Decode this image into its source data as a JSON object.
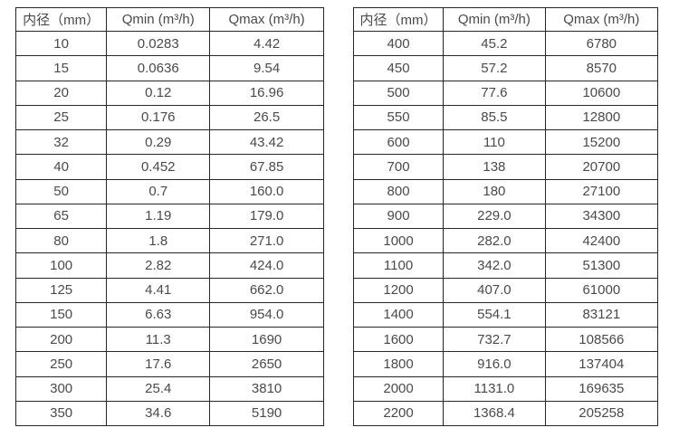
{
  "colors": {
    "border": "#262626",
    "text": "#4a4a4a",
    "background": "#ffffff"
  },
  "tables": [
    {
      "name": "flow-spec-table-small-diameters",
      "headers": [
        "内径（mm）",
        "Qmin (m³/h)",
        "Qmax (m³/h)"
      ],
      "rows": [
        [
          "10",
          "0.0283",
          "4.42"
        ],
        [
          "15",
          "0.0636",
          "9.54"
        ],
        [
          "20",
          "0.12",
          "16.96"
        ],
        [
          "25",
          "0.176",
          "26.5"
        ],
        [
          "32",
          "0.29",
          "43.42"
        ],
        [
          "40",
          "0.452",
          "67.85"
        ],
        [
          "50",
          "0.7",
          "160.0"
        ],
        [
          "65",
          "1.19",
          "179.0"
        ],
        [
          "80",
          "1.8",
          "271.0"
        ],
        [
          "100",
          "2.82",
          "424.0"
        ],
        [
          "125",
          "4.41",
          "662.0"
        ],
        [
          "150",
          "6.63",
          "954.0"
        ],
        [
          "200",
          "11.3",
          "1690"
        ],
        [
          "250",
          "17.6",
          "2650"
        ],
        [
          "300",
          "25.4",
          "3810"
        ],
        [
          "350",
          "34.6",
          "5190"
        ]
      ]
    },
    {
      "name": "flow-spec-table-large-diameters",
      "headers": [
        "内径（mm）",
        "Qmin (m³/h)",
        "Qmax (m³/h)"
      ],
      "rows": [
        [
          "400",
          "45.2",
          "6780"
        ],
        [
          "450",
          "57.2",
          "8570"
        ],
        [
          "500",
          "77.6",
          "10600"
        ],
        [
          "550",
          "85.5",
          "12800"
        ],
        [
          "600",
          "110",
          "15200"
        ],
        [
          "700",
          "138",
          "20700"
        ],
        [
          "800",
          "180",
          "27100"
        ],
        [
          "900",
          "229.0",
          "34300"
        ],
        [
          "1000",
          "282.0",
          "42400"
        ],
        [
          "1100",
          "342.0",
          "51300"
        ],
        [
          "1200",
          "407.0",
          "61000"
        ],
        [
          "1400",
          "554.1",
          "83121"
        ],
        [
          "1600",
          "732.7",
          "108566"
        ],
        [
          "1800",
          "916.0",
          "137404"
        ],
        [
          "2000",
          "1131.0",
          "169635"
        ],
        [
          "2200",
          "1368.4",
          "205258"
        ]
      ]
    }
  ]
}
